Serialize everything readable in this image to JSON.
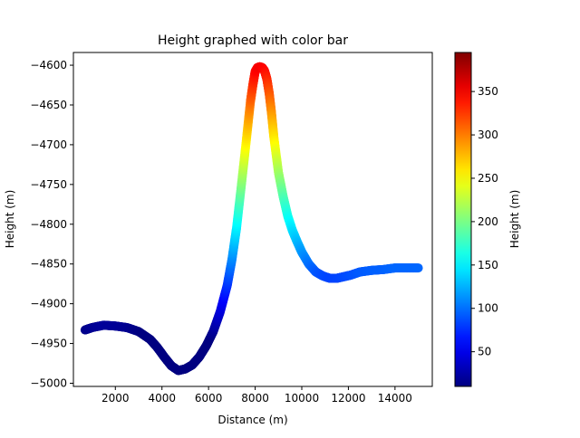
{
  "chart_data": {
    "type": "scatter",
    "title": "Height graphed with color bar",
    "xlabel": "Distance (m)",
    "ylabel": "Height (m)",
    "xlim": [
      200,
      15600
    ],
    "ylim": [
      -5004,
      -4584
    ],
    "x_ticks": [
      2000,
      4000,
      6000,
      8000,
      10000,
      12000,
      14000
    ],
    "y_ticks": [
      -5000,
      -4950,
      -4900,
      -4850,
      -4800,
      -4750,
      -4700,
      -4650,
      -4600
    ],
    "grid": false,
    "colormap": "jet",
    "colorbar": {
      "label": "Height (m)",
      "range": [
        10,
        395
      ],
      "ticks": [
        50,
        100,
        150,
        200,
        250,
        300,
        350
      ]
    },
    "series": [
      {
        "x": [
          700,
          1000,
          1500,
          2000,
          2500,
          3000,
          3500,
          3800,
          4100,
          4400,
          4700,
          5000,
          5300,
          5600,
          5900,
          6200,
          6500,
          6800,
          7000,
          7200,
          7400,
          7600,
          7800,
          7900,
          8000,
          8100,
          8200,
          8300,
          8400,
          8500,
          8600,
          8700,
          8800,
          9000,
          9200,
          9400,
          9600,
          9800,
          10000,
          10300,
          10600,
          10900,
          11200,
          11500,
          11800,
          12100,
          12500,
          13000,
          13500,
          14000,
          14500,
          15000
        ],
        "y": [
          -4933,
          -4930,
          -4927,
          -4928,
          -4930,
          -4935,
          -4945,
          -4955,
          -4967,
          -4978,
          -4984,
          -4982,
          -4977,
          -4967,
          -4953,
          -4935,
          -4910,
          -4877,
          -4845,
          -4805,
          -4753,
          -4700,
          -4645,
          -4625,
          -4608,
          -4603,
          -4602,
          -4603,
          -4607,
          -4617,
          -4635,
          -4660,
          -4690,
          -4735,
          -4765,
          -4790,
          -4808,
          -4822,
          -4835,
          -4850,
          -4860,
          -4865,
          -4868,
          -4868,
          -4866,
          -4864,
          -4860,
          -4858,
          -4857,
          -4855,
          -4855,
          -4855
        ],
        "c": [
          14,
          17,
          20,
          19,
          17,
          12,
          4,
          -5,
          -16,
          -26,
          -32,
          -30,
          -25,
          -15,
          -1,
          17,
          42,
          75,
          107,
          147,
          199,
          252,
          307,
          327,
          344,
          349,
          350,
          349,
          345,
          335,
          317,
          292,
          262,
          217,
          187,
          162,
          144,
          130,
          117,
          102,
          92,
          87,
          84,
          84,
          86,
          88,
          92,
          94,
          95,
          97,
          97,
          97
        ]
      }
    ]
  }
}
